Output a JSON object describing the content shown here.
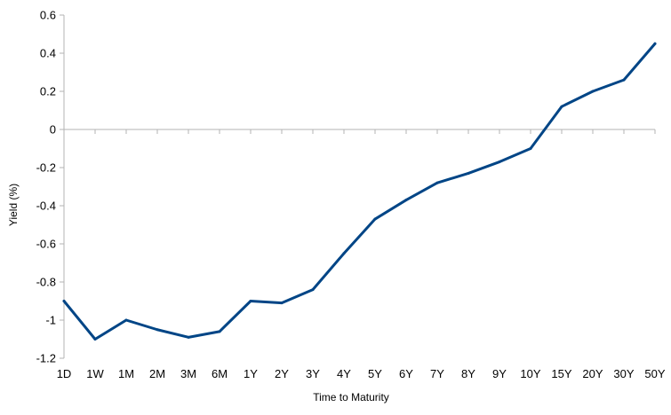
{
  "chart_data": {
    "type": "line",
    "title": "",
    "xlabel": "Time to Maturity",
    "ylabel": "Yield (%)",
    "categories": [
      "1D",
      "1W",
      "1M",
      "2M",
      "3M",
      "6M",
      "1Y",
      "2Y",
      "3Y",
      "4Y",
      "5Y",
      "6Y",
      "7Y",
      "8Y",
      "9Y",
      "10Y",
      "15Y",
      "20Y",
      "30Y",
      "50Y"
    ],
    "series": [
      {
        "values": [
          -0.9,
          -1.1,
          -1.0,
          -1.05,
          -1.09,
          -1.06,
          -0.9,
          -0.91,
          -0.84,
          -0.65,
          -0.47,
          -0.37,
          -0.28,
          -0.23,
          -0.17,
          -0.1,
          0.12,
          0.2,
          0.26,
          0.45
        ]
      }
    ],
    "ylim": [
      -1.2,
      0.6
    ],
    "yticks": [
      "0.6",
      "0.4",
      "0.2",
      "0",
      "-0.2",
      "-0.4",
      "-0.6",
      "-0.8",
      "-1",
      "-1.2"
    ],
    "ytick_values": [
      0.6,
      0.4,
      0.2,
      0,
      -0.2,
      -0.4,
      -0.6,
      -0.8,
      -1,
      -1.2
    ],
    "grid": false,
    "legend": "none",
    "colors": {
      "line": "#004586",
      "axis": "#b3b3b3",
      "zero_line": "#b3b3b3"
    }
  }
}
